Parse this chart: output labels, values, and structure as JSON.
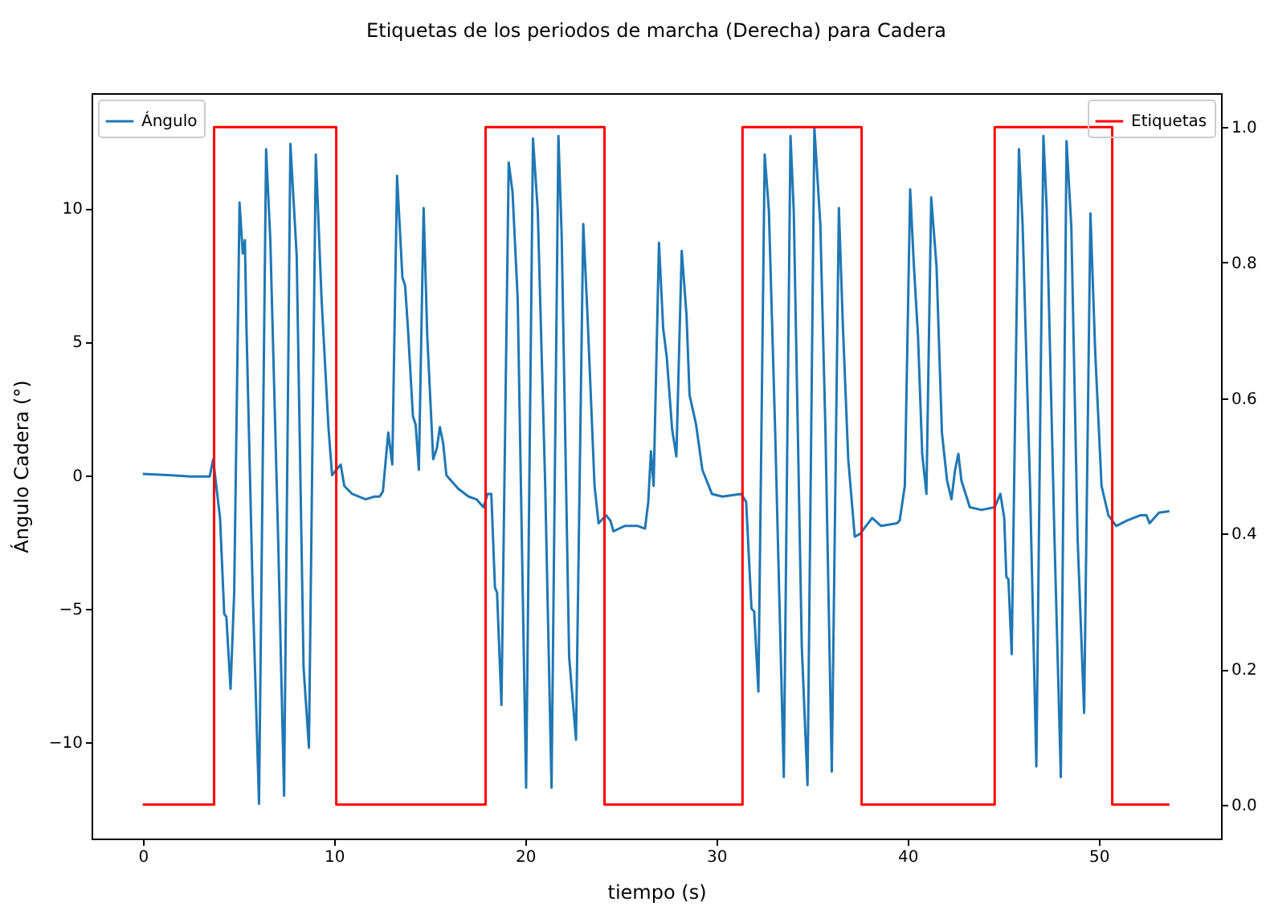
{
  "chart_data": {
    "type": "line",
    "title": "Etiquetas de los periodos de marcha (Derecha) para Cadera",
    "xlabel": "tiempo (s)",
    "ylabel": "Ángulo Cadera (°)",
    "xlim": [
      -2.68,
      56.4
    ],
    "xticks": [
      0,
      10,
      20,
      30,
      40,
      50
    ],
    "ylim": [
      -13.6,
      14.3
    ],
    "yticks": [
      {
        "value": -10,
        "label": "−10"
      },
      {
        "value": -5,
        "label": "−5"
      },
      0,
      5,
      10
    ],
    "y2lim": [
      -0.05,
      1.05
    ],
    "y2ticks": [
      {
        "value": 0,
        "label": "0.0"
      },
      0.2,
      0.4,
      0.6,
      0.8,
      {
        "value": 1,
        "label": "1.0"
      }
    ],
    "legend": "top left",
    "series": [
      {
        "name": "Ángulo",
        "color": "#1f77b4",
        "x": [
          0,
          1.5,
          2.5,
          3.5,
          3.68,
          4.04,
          4.26,
          4.37,
          4.59,
          4.78,
          5.06,
          5.23,
          5.34,
          5.42,
          5.75,
          6.08,
          6.45,
          6.67,
          7.08,
          7.39,
          7.72,
          8.05,
          8.41,
          8.69,
          9.05,
          9.35,
          9.71,
          9.9,
          10.12,
          10.35,
          10.54,
          10.95,
          11.65,
          12.12,
          12.39,
          12.56,
          12.84,
          13.05,
          13.3,
          13.58,
          13.72,
          13.86,
          14.13,
          14.27,
          14.44,
          14.69,
          14.88,
          15.19,
          15.38,
          15.54,
          15.71,
          15.88,
          16.49,
          17.04,
          17.45,
          17.82,
          18.04,
          18.23,
          18.42,
          18.53,
          18.76,
          19.14,
          19.34,
          19.61,
          20.05,
          20.41,
          20.66,
          21.05,
          21.38,
          21.74,
          21.91,
          22.3,
          22.66,
          23.04,
          23.26,
          23.63,
          23.84,
          24.23,
          24.46,
          24.62,
          25.2,
          25.89,
          26.27,
          26.44,
          26.58,
          26.72,
          27.0,
          27.22,
          27.41,
          27.69,
          27.91,
          28.19,
          28.44,
          28.6,
          28.94,
          29.27,
          29.77,
          30.32,
          31.29,
          31.56,
          31.84,
          31.98,
          32.2,
          32.53,
          32.75,
          33.08,
          33.53,
          33.88,
          34.05,
          34.47,
          34.77,
          35.13,
          35.44,
          35.71,
          36.04,
          36.41,
          36.62,
          36.9,
          37.24,
          37.51,
          38.15,
          38.62,
          39.45,
          39.59,
          39.86,
          40.14,
          40.33,
          40.55,
          40.77,
          40.99,
          41.24,
          41.52,
          41.8,
          42.07,
          42.3,
          42.49,
          42.66,
          42.82,
          43.26,
          43.87,
          44.56,
          44.86,
          45.06,
          45.17,
          45.28,
          45.45,
          45.83,
          46.02,
          46.41,
          46.74,
          47.11,
          47.28,
          47.69,
          48.02,
          48.32,
          48.57,
          48.9,
          49.24,
          49.57,
          49.82,
          50.15,
          50.51,
          50.92,
          51.48,
          52.17,
          52.5,
          52.66,
          53.16,
          53.7
        ],
        "values": [
          0.05,
          0.0,
          -0.05,
          -0.05,
          0.6,
          -1.6,
          -5.2,
          -5.3,
          -8.0,
          -4.4,
          10.2,
          8.3,
          8.8,
          5.6,
          -4.4,
          -12.3,
          12.2,
          8.8,
          -2.4,
          -12.0,
          12.4,
          8.2,
          -7.2,
          -10.2,
          12.0,
          6.6,
          1.8,
          0.0,
          0.2,
          0.4,
          -0.4,
          -0.7,
          -0.9,
          -0.8,
          -0.8,
          -0.6,
          1.6,
          0.4,
          11.2,
          7.4,
          7.1,
          5.6,
          2.2,
          1.9,
          0.2,
          10.0,
          5.2,
          0.6,
          1.0,
          1.8,
          1.2,
          0.0,
          -0.5,
          -0.8,
          -0.9,
          -1.2,
          -0.7,
          -0.7,
          -4.2,
          -4.4,
          -8.6,
          11.7,
          10.6,
          6.6,
          -11.7,
          12.6,
          9.9,
          -0.4,
          -11.7,
          12.7,
          9.0,
          -6.8,
          -9.9,
          9.4,
          6.0,
          -0.4,
          -1.8,
          -1.5,
          -1.7,
          -2.1,
          -1.9,
          -1.9,
          -2.0,
          -1.0,
          0.9,
          -0.4,
          8.7,
          5.5,
          4.4,
          1.7,
          0.7,
          8.4,
          6.0,
          3.0,
          1.9,
          0.2,
          -0.7,
          -0.8,
          -0.7,
          -1.0,
          -5.0,
          -5.1,
          -8.1,
          12.0,
          9.9,
          1.6,
          -11.3,
          12.7,
          9.9,
          -6.4,
          -11.6,
          13.0,
          9.4,
          1.6,
          -11.1,
          10.0,
          5.6,
          0.6,
          -2.3,
          -2.2,
          -1.6,
          -1.9,
          -1.8,
          -1.7,
          -0.4,
          10.7,
          7.9,
          5.2,
          0.8,
          -0.7,
          10.4,
          7.8,
          1.6,
          -0.2,
          -0.9,
          0.2,
          0.8,
          -0.2,
          -1.2,
          -1.3,
          -1.2,
          -0.7,
          -1.6,
          -3.8,
          -3.9,
          -6.7,
          12.2,
          9.4,
          -0.4,
          -10.9,
          12.7,
          10.0,
          -2.4,
          -11.3,
          12.5,
          9.3,
          -2.4,
          -8.9,
          9.8,
          4.6,
          -0.4,
          -1.5,
          -1.9,
          -1.7,
          -1.5,
          -1.5,
          -1.8,
          -1.4,
          -1.35
        ]
      },
      {
        "name": "Etiquetas",
        "type": "step",
        "axis": "y2",
        "color": "#ff0000",
        "x": [
          0,
          3.73,
          10.12,
          17.93,
          24.15,
          31.37,
          37.6,
          44.56,
          50.71,
          53.7
        ],
        "values": [
          0,
          1,
          0,
          1,
          0,
          1,
          0,
          1,
          0,
          0
        ]
      }
    ]
  }
}
